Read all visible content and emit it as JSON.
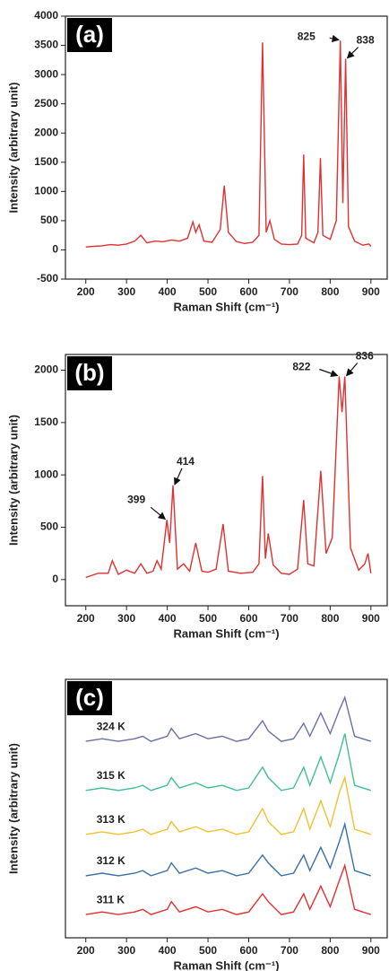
{
  "chart_data": [
    {
      "type": "line",
      "label": "(a)",
      "x_label": "Raman Shift (cm⁻¹)",
      "y_label": "Intensity (arbitrary unit)",
      "color": "#e03030",
      "xlim": [
        150,
        940
      ],
      "ylim": [
        -500,
        4000
      ],
      "xticks": [
        200,
        300,
        400,
        500,
        600,
        700,
        800,
        900
      ],
      "yticks": [
        -500,
        0,
        500,
        1000,
        1500,
        2000,
        2500,
        3000,
        3500,
        4000
      ],
      "x": [
        200,
        220,
        240,
        260,
        280,
        300,
        320,
        335,
        350,
        370,
        390,
        410,
        430,
        450,
        463,
        470,
        478,
        490,
        510,
        530,
        540,
        550,
        570,
        590,
        610,
        625,
        634,
        643,
        652,
        663,
        680,
        700,
        720,
        730,
        735,
        740,
        760,
        770,
        776,
        782,
        800,
        815,
        825,
        831,
        838,
        845,
        860,
        880,
        895,
        900
      ],
      "values": [
        50,
        60,
        70,
        90,
        80,
        100,
        150,
        250,
        120,
        150,
        140,
        170,
        150,
        200,
        480,
        300,
        430,
        150,
        130,
        350,
        1100,
        300,
        140,
        110,
        130,
        250,
        3550,
        300,
        500,
        180,
        100,
        90,
        100,
        250,
        1630,
        200,
        120,
        300,
        1570,
        250,
        180,
        500,
        3580,
        800,
        3270,
        400,
        150,
        80,
        100,
        60
      ],
      "annotations": [
        {
          "text": "825"
        },
        {
          "text": "838"
        }
      ]
    },
    {
      "type": "line",
      "label": "(b)",
      "x_label": "Raman Shift (cm⁻¹)",
      "y_label": "Intensity (arbitrary unit)",
      "color": "#e03030",
      "xlim": [
        150,
        940
      ],
      "ylim": [
        -250,
        2150
      ],
      "xticks": [
        200,
        300,
        400,
        500,
        600,
        700,
        800,
        900
      ],
      "yticks": [
        0,
        500,
        1000,
        1500,
        2000
      ],
      "x": [
        200,
        230,
        255,
        265,
        280,
        300,
        320,
        335,
        350,
        365,
        375,
        385,
        399,
        406,
        414,
        425,
        440,
        455,
        470,
        485,
        500,
        520,
        537,
        550,
        580,
        610,
        625,
        634,
        641,
        648,
        660,
        680,
        700,
        720,
        735,
        745,
        760,
        777,
        790,
        805,
        822,
        829,
        836,
        850,
        870,
        885,
        893,
        900
      ],
      "values": [
        20,
        60,
        60,
        180,
        50,
        90,
        60,
        150,
        60,
        80,
        180,
        100,
        570,
        350,
        900,
        100,
        150,
        80,
        350,
        80,
        70,
        100,
        530,
        80,
        60,
        70,
        150,
        990,
        200,
        440,
        140,
        60,
        50,
        100,
        760,
        150,
        130,
        1040,
        250,
        400,
        1940,
        1600,
        1940,
        300,
        90,
        150,
        250,
        60
      ],
      "annotations": [
        {
          "text": "822"
        },
        {
          "text": "836"
        },
        {
          "text": "399"
        },
        {
          "text": "414"
        }
      ]
    },
    {
      "type": "line",
      "label": "(c)",
      "x_label": "Raman Shift (cm⁻¹)",
      "y_label": "Intensity (arbitrary unit)",
      "xlim": [
        150,
        940
      ],
      "ylim": [
        0,
        100
      ],
      "xticks": [
        200,
        300,
        400,
        500,
        600,
        700,
        800,
        900
      ],
      "x": [
        200,
        240,
        280,
        320,
        340,
        360,
        400,
        410,
        430,
        470,
        500,
        535,
        570,
        600,
        634,
        648,
        680,
        710,
        735,
        750,
        777,
        800,
        822,
        836,
        860,
        900
      ],
      "series": [
        {
          "name": "311 K",
          "color": "#e03030",
          "values": [
            9,
            10,
            9,
            10,
            11,
            9,
            11,
            14,
            10,
            12,
            10,
            11,
            9,
            10,
            17,
            14,
            9,
            10,
            17,
            11,
            20,
            12,
            22,
            28,
            11,
            9
          ]
        },
        {
          "name": "312 K",
          "color": "#3a6fa8",
          "values": [
            24,
            25,
            24,
            25,
            26,
            24,
            26,
            29,
            25,
            27,
            25,
            26,
            24,
            25,
            32,
            29,
            24,
            25,
            32,
            26,
            35,
            27,
            37,
            44,
            26,
            24
          ]
        },
        {
          "name": "313 K",
          "color": "#f0c030",
          "values": [
            40,
            41,
            40,
            41,
            42,
            40,
            42,
            45,
            41,
            43,
            41,
            42,
            40,
            41,
            50,
            45,
            40,
            41,
            50,
            42,
            53,
            43,
            56,
            62,
            42,
            40
          ]
        },
        {
          "name": "315 K",
          "color": "#40c090",
          "values": [
            57,
            58,
            57,
            58,
            59,
            57,
            59,
            62,
            58,
            60,
            58,
            59,
            57,
            58,
            66,
            62,
            57,
            58,
            66,
            59,
            70,
            60,
            71,
            79,
            59,
            57
          ]
        },
        {
          "name": "324 K",
          "color": "#6870a8",
          "values": [
            76,
            77,
            76,
            77,
            78,
            76,
            78,
            81,
            77,
            79,
            77,
            78,
            76,
            77,
            84,
            80,
            76,
            77,
            83,
            78,
            87,
            79,
            88,
            93,
            78,
            76
          ]
        }
      ]
    }
  ]
}
